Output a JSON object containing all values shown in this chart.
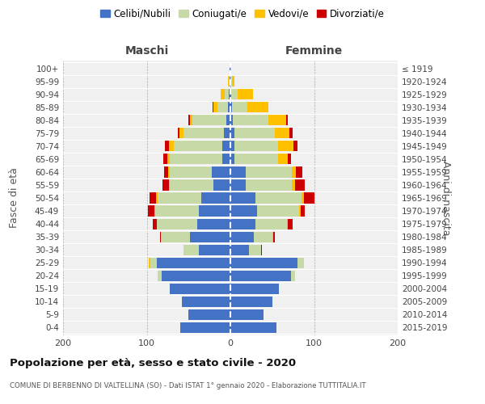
{
  "age_groups": [
    "0-4",
    "5-9",
    "10-14",
    "15-19",
    "20-24",
    "25-29",
    "30-34",
    "35-39",
    "40-44",
    "45-49",
    "50-54",
    "55-59",
    "60-64",
    "65-69",
    "70-74",
    "75-79",
    "80-84",
    "85-89",
    "90-94",
    "95-99",
    "100+"
  ],
  "birth_years": [
    "2015-2019",
    "2010-2014",
    "2005-2009",
    "2000-2004",
    "1995-1999",
    "1990-1994",
    "1985-1989",
    "1980-1984",
    "1975-1979",
    "1970-1974",
    "1965-1969",
    "1960-1964",
    "1955-1959",
    "1950-1954",
    "1945-1949",
    "1940-1944",
    "1935-1939",
    "1930-1934",
    "1925-1929",
    "1920-1924",
    "≤ 1919"
  ],
  "maschi": {
    "celibi": [
      60,
      50,
      58,
      72,
      82,
      88,
      38,
      48,
      40,
      38,
      35,
      20,
      22,
      10,
      10,
      8,
      5,
      3,
      2,
      1,
      1
    ],
    "coniugati": [
      0,
      0,
      0,
      0,
      5,
      8,
      18,
      35,
      48,
      52,
      52,
      52,
      50,
      62,
      58,
      48,
      40,
      12,
      5,
      1,
      0
    ],
    "vedovi": [
      0,
      0,
      0,
      0,
      0,
      2,
      0,
      0,
      0,
      1,
      2,
      1,
      2,
      3,
      5,
      5,
      3,
      5,
      5,
      1,
      0
    ],
    "divorziati": [
      0,
      0,
      0,
      0,
      0,
      0,
      0,
      1,
      5,
      8,
      8,
      8,
      5,
      5,
      5,
      2,
      2,
      1,
      0,
      0,
      0
    ]
  },
  "femmine": {
    "nubili": [
      55,
      40,
      50,
      58,
      72,
      80,
      22,
      28,
      30,
      32,
      30,
      18,
      18,
      5,
      5,
      5,
      3,
      2,
      1,
      0,
      0
    ],
    "coniugate": [
      0,
      0,
      0,
      0,
      5,
      8,
      15,
      22,
      38,
      50,
      55,
      55,
      55,
      52,
      52,
      48,
      42,
      18,
      8,
      2,
      0
    ],
    "vedove": [
      0,
      0,
      0,
      0,
      0,
      0,
      0,
      1,
      1,
      2,
      3,
      4,
      5,
      12,
      18,
      18,
      22,
      25,
      18,
      3,
      1
    ],
    "divorziate": [
      0,
      0,
      0,
      0,
      0,
      0,
      1,
      2,
      5,
      5,
      12,
      12,
      8,
      3,
      5,
      3,
      2,
      0,
      0,
      0,
      0
    ]
  },
  "colors": {
    "celibi": "#4472c4",
    "coniugati": "#c8d9a8",
    "vedovi": "#ffc000",
    "divorziati": "#cc0000"
  },
  "xlim": 200,
  "title": "Popolazione per età, sesso e stato civile - 2020",
  "subtitle": "COMUNE DI BERBENNO DI VALTELLINA (SO) - Dati ISTAT 1° gennaio 2020 - Elaborazione TUTTITALIA.IT",
  "ylabel_left": "Fasce di età",
  "ylabel_right": "Anni di nascita",
  "legend_labels": [
    "Celibi/Nubili",
    "Coniugati/e",
    "Vedovi/e",
    "Divorziati/e"
  ],
  "maschi_label": "Maschi",
  "femmine_label": "Femmine",
  "bg_color": "#f0f0f0"
}
